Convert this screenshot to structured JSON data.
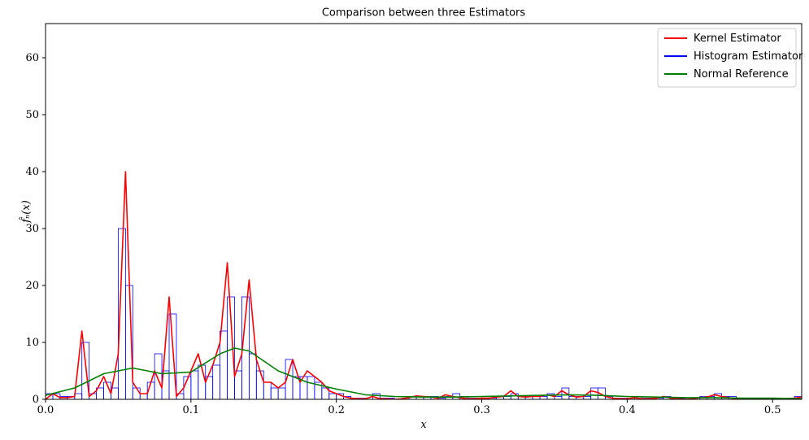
{
  "chart_data": {
    "type": "histogram",
    "title": "Comparison between three Estimators",
    "xlabel": "x",
    "ylabel": "f̂ₙ(x)",
    "xlim": [
      0,
      0.52
    ],
    "ylim": [
      0,
      66
    ],
    "xticks": [
      {
        "value": 0,
        "label": "0.0"
      },
      0.1,
      0.2,
      0.3,
      0.4,
      0.5
    ],
    "yticks": [
      0,
      10,
      20,
      30,
      40,
      50,
      60
    ],
    "legend": "upper right",
    "series": [
      {
        "name": "Kernel Estimator",
        "type": "line",
        "color": "#ff0000",
        "x": [
          0,
          0.005,
          0.01,
          0.015,
          0.02,
          0.025,
          0.03,
          0.035,
          0.04,
          0.045,
          0.05,
          0.055,
          0.06,
          0.065,
          0.07,
          0.075,
          0.08,
          0.085,
          0.09,
          0.095,
          0.1,
          0.105,
          0.11,
          0.115,
          0.12,
          0.125,
          0.13,
          0.135,
          0.14,
          0.145,
          0.15,
          0.155,
          0.16,
          0.165,
          0.17,
          0.175,
          0.18,
          0.185,
          0.19,
          0.195,
          0.2,
          0.205,
          0.21,
          0.215,
          0.22,
          0.225,
          0.23,
          0.235,
          0.24,
          0.245,
          0.25,
          0.255,
          0.26,
          0.265,
          0.27,
          0.275,
          0.28,
          0.285,
          0.29,
          0.295,
          0.3,
          0.305,
          0.31,
          0.315,
          0.32,
          0.325,
          0.33,
          0.335,
          0.34,
          0.345,
          0.35,
          0.355,
          0.36,
          0.365,
          0.37,
          0.375,
          0.38,
          0.385,
          0.39,
          0.395,
          0.4,
          0.405,
          0.41,
          0.415,
          0.42,
          0.425,
          0.43,
          0.435,
          0.44,
          0.445,
          0.45,
          0.455,
          0.46,
          0.465,
          0.47,
          0.475,
          0.48,
          0.485,
          0.49,
          0.495,
          0.5,
          0.505,
          0.51,
          0.515,
          0.52
        ],
        "values": [
          0,
          1,
          0.3,
          0.3,
          0.5,
          12,
          0.5,
          1.5,
          4,
          1,
          8,
          40,
          3,
          1,
          1,
          5,
          2,
          18,
          0.5,
          2,
          5,
          8,
          3,
          6,
          10,
          24,
          4,
          8,
          21,
          7,
          3,
          3,
          2,
          3,
          7,
          3,
          5,
          4,
          3,
          1.5,
          1,
          0.5,
          0.2,
          0.1,
          0.1,
          0.5,
          0.1,
          0.1,
          0,
          0.1,
          0.3,
          0.6,
          0.5,
          0.4,
          0.2,
          0.8,
          0.5,
          0.3,
          0.1,
          0.1,
          0.2,
          0.2,
          0.4,
          0.5,
          1.5,
          0.5,
          0.4,
          0.5,
          0.5,
          0.8,
          0.5,
          1.5,
          0.8,
          0.4,
          0.5,
          1.5,
          1.2,
          0.5,
          0.2,
          0.1,
          0.1,
          0.3,
          0.1,
          0.1,
          0.2,
          0.5,
          0.2,
          0.1,
          0,
          0.1,
          0.3,
          0.4,
          0.8,
          0.5,
          0.3,
          0.1,
          0.1,
          0.1,
          0.1,
          0.1,
          0.1,
          0.1,
          0.1,
          0.2,
          0.4
        ]
      },
      {
        "name": "Histogram Estimator",
        "type": "histogram",
        "color": "#0000ff",
        "bins": [
          0,
          0.005,
          0.01,
          0.015,
          0.02,
          0.025,
          0.03,
          0.035,
          0.04,
          0.045,
          0.05,
          0.055,
          0.06,
          0.065,
          0.07,
          0.075,
          0.08,
          0.085,
          0.09,
          0.095,
          0.1,
          0.105,
          0.11,
          0.115,
          0.12,
          0.125,
          0.13,
          0.135,
          0.14,
          0.145,
          0.15,
          0.155,
          0.16,
          0.165,
          0.17,
          0.175,
          0.18,
          0.185,
          0.19,
          0.195,
          0.2,
          0.205,
          0.21,
          0.215,
          0.22,
          0.225,
          0.23,
          0.235,
          0.24,
          0.245,
          0.25,
          0.255,
          0.26,
          0.265,
          0.27,
          0.275,
          0.28,
          0.285,
          0.29,
          0.295,
          0.3,
          0.305,
          0.31,
          0.315,
          0.32,
          0.325,
          0.33,
          0.335,
          0.34,
          0.345,
          0.35,
          0.355,
          0.36,
          0.365,
          0.37,
          0.375,
          0.38,
          0.385,
          0.39,
          0.395,
          0.4,
          0.405,
          0.41,
          0.415,
          0.42,
          0.425,
          0.43,
          0.435,
          0.44,
          0.445,
          0.45,
          0.455,
          0.46,
          0.465,
          0.47,
          0.475,
          0.48,
          0.485,
          0.49,
          0.495,
          0.5,
          0.505,
          0.51,
          0.515,
          0.52
        ],
        "values": [
          1,
          1,
          0.5,
          0.5,
          1,
          10,
          1,
          2,
          3,
          2,
          30,
          20,
          2,
          1,
          3,
          8,
          5,
          15,
          1,
          4,
          5,
          6,
          4,
          6,
          12,
          18,
          5,
          18,
          8,
          5,
          3,
          2,
          2,
          7,
          4,
          4,
          4,
          3,
          2,
          1,
          1,
          0.5,
          0.2,
          0.2,
          0,
          1,
          0.2,
          0.2,
          0,
          0.2,
          0.5,
          0.5,
          0.5,
          0.5,
          0.2,
          0.5,
          1,
          0.5,
          0.2,
          0.2,
          0.2,
          0.2,
          0.5,
          0.5,
          1,
          0.5,
          0.5,
          0.5,
          0.5,
          1,
          0.5,
          2,
          0.5,
          0.5,
          0.5,
          2,
          2,
          0.5,
          0.2,
          0.2,
          0.2,
          0.5,
          0.2,
          0.2,
          0.2,
          0.5,
          0.2,
          0.2,
          0,
          0.2,
          0.5,
          0.5,
          1,
          0.5,
          0.5,
          0.2,
          0.2,
          0.2,
          0.2,
          0.2,
          0.2,
          0.2,
          0.2,
          0.5
        ]
      },
      {
        "name": "Normal Reference",
        "type": "line",
        "color": "#008000",
        "x": [
          0,
          0.02,
          0.04,
          0.06,
          0.08,
          0.1,
          0.12,
          0.13,
          0.14,
          0.16,
          0.18,
          0.2,
          0.22,
          0.24,
          0.26,
          0.28,
          0.3,
          0.32,
          0.34,
          0.36,
          0.38,
          0.4,
          0.42,
          0.44,
          0.46,
          0.48,
          0.5,
          0.52
        ],
        "values": [
          0.7,
          2,
          4.5,
          5.5,
          4.5,
          4.8,
          8,
          9,
          8.5,
          5,
          3,
          1.8,
          0.8,
          0.5,
          0.4,
          0.4,
          0.5,
          0.6,
          0.7,
          0.8,
          0.7,
          0.5,
          0.4,
          0.3,
          0.3,
          0.2,
          0.2,
          0.1
        ]
      }
    ]
  }
}
